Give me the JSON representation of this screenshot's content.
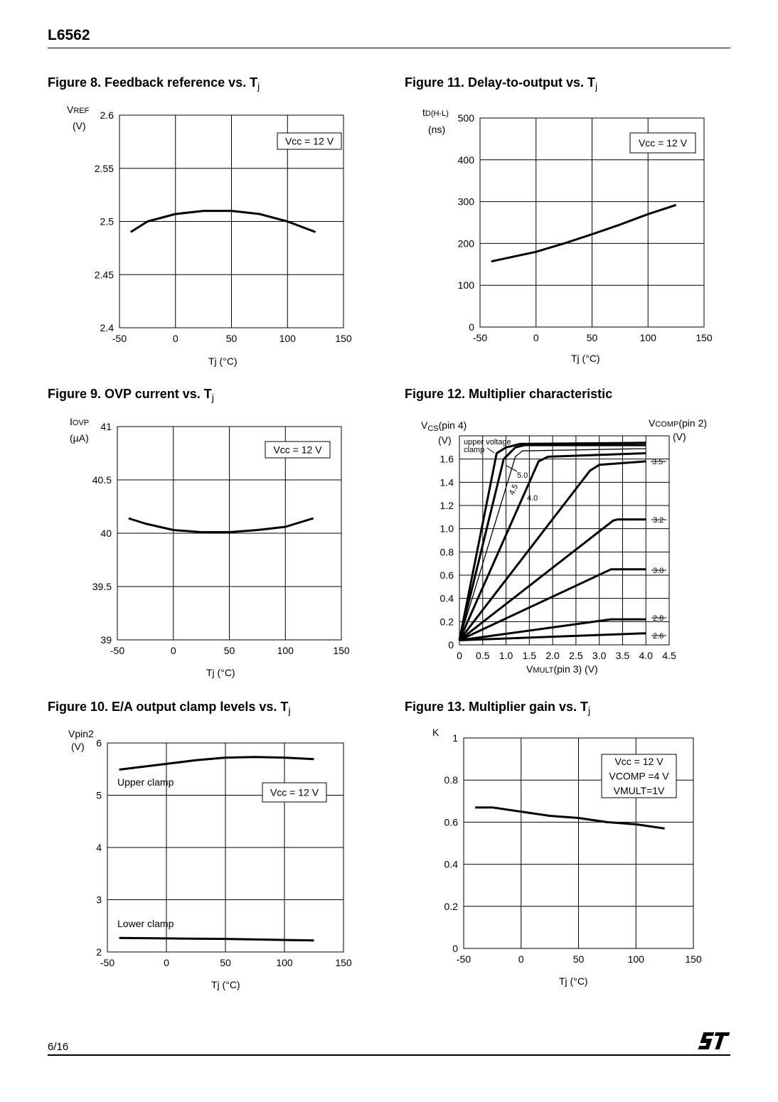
{
  "header": {
    "doc_title": "L6562"
  },
  "footer": {
    "page": "6/16",
    "logo_text": "ST"
  },
  "figures": [
    {
      "title": "Figure 8. Feedback reference vs. T",
      "title_sub": "j"
    },
    {
      "title": "Figure 11. Delay-to-output vs. T",
      "title_sub": "j"
    },
    {
      "title": "Figure 9. OVP current vs. T",
      "title_sub": "j"
    },
    {
      "title": "Figure 12. Multiplier characteristic",
      "title_sub": ""
    },
    {
      "title": "Figure 10. E/A output clamp levels vs. T",
      "title_sub": "j"
    },
    {
      "title": "Figure 13. Multiplier gain vs. T",
      "title_sub": "j"
    }
  ],
  "axis_labels": {
    "fig8": {
      "y_main": "V",
      "y_sub": "REF",
      "y_unit": "(V)",
      "x": "Tj  (°C)"
    },
    "fig11": {
      "y_main": "t",
      "y_sub": "D(H-L)",
      "y_unit": "(ns)",
      "x": "Tj  (°C)"
    },
    "fig9": {
      "y_main": "I",
      "y_sub": "OVP",
      "y_unit": "(µA)",
      "x": "Tj  (°C)"
    },
    "fig12": {
      "y_main": "V",
      "y_sub": "CS",
      "y_rest": "(pin 4)",
      "y_unit": "(V)",
      "r_main": "V",
      "r_sub": "COMP",
      "r_rest": "(pin 2)",
      "r_unit": "(V)",
      "x_main": "V",
      "x_sub": "MULT",
      "x_rest": "(pin 3) (V)"
    },
    "fig10": {
      "y_main": "Vpin2",
      "y_unit": "(V)",
      "x": "Tj  (°C)"
    },
    "fig13": {
      "y_main": "K",
      "x": "Tj  (°C)"
    }
  },
  "chart_data": [
    {
      "id": "fig8",
      "type": "line",
      "title": "Feedback reference vs. Tj",
      "xlabel": "Tj (°C)",
      "ylabel": "VREF (V)",
      "xlim": [
        -50,
        150
      ],
      "ylim": [
        2.4,
        2.6
      ],
      "grid": true,
      "xticks": [
        -50,
        0,
        50,
        100,
        150
      ],
      "xtick_labels": [
        "-50",
        "0",
        "50",
        "100",
        "150"
      ],
      "yticks": [
        2.4,
        2.45,
        2.5,
        2.55,
        2.6
      ],
      "ytick_labels": [
        "2.4",
        "2.45",
        "2.5",
        "2.55",
        "2.6"
      ],
      "legend": [
        "Vcc = 12 V"
      ],
      "series": [
        {
          "name": "VREF",
          "label": "",
          "x": [
            -40,
            -25,
            0,
            25,
            50,
            75,
            100,
            125
          ],
          "y": [
            2.49,
            2.5,
            2.507,
            2.51,
            2.51,
            2.507,
            2.5,
            2.49
          ]
        }
      ]
    },
    {
      "id": "fig11",
      "type": "line",
      "title": "Delay-to-output vs. Tj",
      "xlabel": "Tj (°C)",
      "ylabel": "tD(H-L) (ns)",
      "xlim": [
        -50,
        150
      ],
      "ylim": [
        0,
        500
      ],
      "grid": true,
      "xticks": [
        -50,
        0,
        50,
        100,
        150
      ],
      "xtick_labels": [
        "-50",
        "0",
        "50",
        "100",
        "150"
      ],
      "yticks": [
        0,
        100,
        200,
        300,
        400,
        500
      ],
      "ytick_labels": [
        "0",
        "100",
        "200",
        "300",
        "400",
        "500"
      ],
      "legend": [
        "Vcc = 12 V"
      ],
      "series": [
        {
          "name": "tD(H-L)",
          "label": "",
          "x": [
            -40,
            0,
            25,
            50,
            75,
            100,
            125
          ],
          "y": [
            157,
            180,
            200,
            222,
            245,
            270,
            292
          ]
        }
      ]
    },
    {
      "id": "fig9",
      "type": "line",
      "title": "OVP current vs. Tj",
      "xlabel": "Tj (°C)",
      "ylabel": "IOVP (µA)",
      "xlim": [
        -50,
        150
      ],
      "ylim": [
        39,
        41
      ],
      "grid": true,
      "xticks": [
        -50,
        0,
        50,
        100,
        150
      ],
      "xtick_labels": [
        "-50",
        "0",
        "50",
        "100",
        "150"
      ],
      "yticks": [
        39,
        39.5,
        40,
        40.5,
        41
      ],
      "ytick_labels": [
        "39",
        "39.5",
        "40",
        "40.5",
        "41"
      ],
      "legend": [
        "Vcc = 12 V"
      ],
      "series": [
        {
          "name": "IOVP",
          "label": "",
          "x": [
            -40,
            -25,
            0,
            25,
            50,
            75,
            100,
            125
          ],
          "y": [
            40.14,
            40.09,
            40.03,
            40.01,
            40.01,
            40.03,
            40.06,
            40.14
          ]
        }
      ]
    },
    {
      "id": "fig12",
      "type": "line",
      "title": "Multiplier characteristic",
      "xlabel": "VMULT(pin 3) (V)",
      "ylabel": "VCS(pin 4) (V)",
      "xlim": [
        0,
        4.5
      ],
      "ylim": [
        0,
        1.8
      ],
      "grid": true,
      "xticks": [
        0,
        0.5,
        1.0,
        1.5,
        2.0,
        2.5,
        3.0,
        3.5,
        4.0,
        4.5
      ],
      "xtick_labels": [
        "0",
        "0.5",
        "1.0",
        "1.5",
        "2.0",
        "2.5",
        "3.0",
        "3.5",
        "4.0",
        "4.5"
      ],
      "yticks": [
        0,
        0.2,
        0.4,
        0.6,
        0.8,
        1.0,
        1.2,
        1.4,
        1.6
      ],
      "ytick_labels": [
        "0",
        "0.2",
        "0.4",
        "0.6",
        "0.8",
        "1.0",
        "1.2",
        "1.4",
        "1.6"
      ],
      "legend": [],
      "annotation": [
        "upper voltage",
        "clamp"
      ],
      "series": [
        {
          "name": "2.6",
          "label": "2.6",
          "x": [
            0,
            4
          ],
          "y": [
            0.04,
            0.1
          ]
        },
        {
          "name": "2.8",
          "label": "2.8",
          "x": [
            0,
            3.25,
            4
          ],
          "y": [
            0.04,
            0.22,
            0.22
          ]
        },
        {
          "name": "3.0",
          "label": "3.0",
          "x": [
            0,
            3.25,
            4
          ],
          "y": [
            0.04,
            0.65,
            0.65
          ]
        },
        {
          "name": "3.2",
          "label": "3.2",
          "x": [
            0,
            3.3,
            3.4,
            4
          ],
          "y": [
            0.04,
            1.07,
            1.08,
            1.08
          ]
        },
        {
          "name": "3.5",
          "label": "3.5",
          "x": [
            0,
            2.8,
            3.0,
            4
          ],
          "y": [
            0.04,
            1.5,
            1.55,
            1.58
          ]
        },
        {
          "name": "4.0",
          "label": "4.0",
          "x": [
            0,
            1.7,
            1.9,
            4
          ],
          "y": [
            0.04,
            1.58,
            1.62,
            1.65
          ]
        },
        {
          "name": "4.5",
          "label": "4.5",
          "x": [
            0,
            1.2,
            1.35,
            4
          ],
          "y": [
            0.04,
            1.62,
            1.67,
            1.69
          ]
        },
        {
          "name": "5.0",
          "label": "5.0",
          "x": [
            0,
            0.95,
            1.2,
            1.4,
            4
          ],
          "y": [
            0.04,
            1.6,
            1.7,
            1.72,
            1.72
          ]
        },
        {
          "name": "upper voltage clamp",
          "label": "",
          "x": [
            0,
            0.8,
            1.0,
            1.3,
            4
          ],
          "y": [
            0.04,
            1.65,
            1.7,
            1.73,
            1.74
          ]
        }
      ]
    },
    {
      "id": "fig10",
      "type": "line",
      "title": "E/A output clamp levels vs. Tj",
      "xlabel": "Tj (°C)",
      "ylabel": "Vpin2 (V)",
      "xlim": [
        -50,
        150
      ],
      "ylim": [
        2,
        6
      ],
      "grid": true,
      "xticks": [
        -50,
        0,
        50,
        100,
        150
      ],
      "xtick_labels": [
        "-50",
        "0",
        "50",
        "100",
        "150"
      ],
      "yticks": [
        2,
        3,
        4,
        5,
        6
      ],
      "ytick_labels": [
        "2",
        "3",
        "4",
        "5",
        "6"
      ],
      "legend": [
        "Vcc = 12 V"
      ],
      "series": [
        {
          "name": "Upper clamp",
          "label": "Upper clamp",
          "x": [
            -40,
            0,
            25,
            50,
            75,
            100,
            125
          ],
          "y": [
            5.49,
            5.6,
            5.67,
            5.72,
            5.73,
            5.72,
            5.69
          ]
        },
        {
          "name": "Lower clamp",
          "label": "Lower clamp",
          "x": [
            -40,
            0,
            50,
            100,
            125
          ],
          "y": [
            2.27,
            2.26,
            2.25,
            2.23,
            2.22
          ]
        }
      ]
    },
    {
      "id": "fig13",
      "type": "line",
      "title": "Multiplier gain vs. Tj",
      "xlabel": "Tj (°C)",
      "ylabel": "K",
      "xlim": [
        -50,
        150
      ],
      "ylim": [
        0,
        1
      ],
      "grid": true,
      "xticks": [
        -50,
        0,
        50,
        100,
        150
      ],
      "xtick_labels": [
        "-50",
        "0",
        "50",
        "100",
        "150"
      ],
      "yticks": [
        0,
        0.2,
        0.4,
        0.6,
        0.8,
        1
      ],
      "ytick_labels": [
        "0",
        "0.2",
        "0.4",
        "0.6",
        "0.8",
        "1"
      ],
      "legend": [
        "Vcc = 12 V",
        "VCOMP =4 V",
        "VMULT=1V"
      ],
      "series": [
        {
          "name": "K",
          "label": "",
          "x": [
            -40,
            -25,
            0,
            25,
            50,
            75,
            100,
            125
          ],
          "y": [
            0.67,
            0.67,
            0.65,
            0.63,
            0.62,
            0.6,
            0.59,
            0.57
          ]
        }
      ]
    }
  ]
}
